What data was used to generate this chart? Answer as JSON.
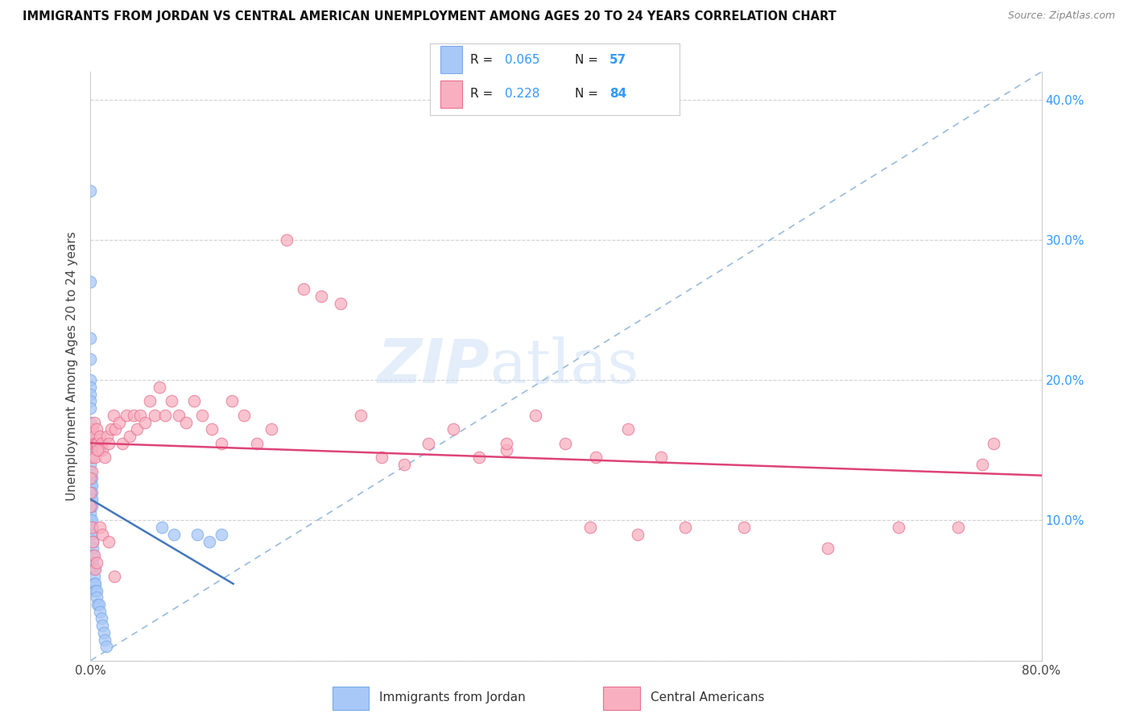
{
  "title": "IMMIGRANTS FROM JORDAN VS CENTRAL AMERICAN UNEMPLOYMENT AMONG AGES 20 TO 24 YEARS CORRELATION CHART",
  "source": "Source: ZipAtlas.com",
  "ylabel": "Unemployment Among Ages 20 to 24 years",
  "xlim": [
    0.0,
    0.8
  ],
  "ylim": [
    0.0,
    0.42
  ],
  "yticks_right": [
    0.1,
    0.2,
    0.3,
    0.4
  ],
  "yticklabels_right": [
    "10.0%",
    "20.0%",
    "30.0%",
    "40.0%"
  ],
  "jordan_color": "#a8c8f8",
  "jordan_edge_color": "#7aaae8",
  "central_color": "#f8b0c0",
  "central_edge_color": "#e87090",
  "trendline_jordan_color": "#4477bb",
  "trendline_central_color": "#dd4477",
  "dashed_line_color": "#99bbdd",
  "watermark_zip": "ZIP",
  "watermark_atlas": "atlas",
  "legend_R_jordan": "0.065",
  "legend_N_jordan": "57",
  "legend_R_central": "0.228",
  "legend_N_central": "84",
  "legend_label_jordan": "Immigrants from Jordan",
  "legend_label_central": "Central Americans",
  "jordan_x": [
    0.0,
    0.0,
    0.0,
    0.0,
    0.0,
    0.0,
    0.0,
    0.0,
    0.0,
    0.0,
    0.0,
    0.0,
    0.0,
    0.0,
    0.0,
    0.0,
    0.0,
    0.0,
    0.0,
    0.0,
    0.0,
    0.0,
    0.0,
    0.0,
    0.0,
    0.001,
    0.001,
    0.001,
    0.001,
    0.001,
    0.001,
    0.001,
    0.001,
    0.002,
    0.002,
    0.002,
    0.002,
    0.003,
    0.003,
    0.003,
    0.004,
    0.004,
    0.005,
    0.005,
    0.006,
    0.007,
    0.008,
    0.009,
    0.01,
    0.011,
    0.012,
    0.013,
    0.06,
    0.07,
    0.09,
    0.1,
    0.11
  ],
  "jordan_y": [
    0.335,
    0.27,
    0.23,
    0.215,
    0.2,
    0.195,
    0.19,
    0.185,
    0.18,
    0.17,
    0.16,
    0.155,
    0.15,
    0.145,
    0.14,
    0.135,
    0.13,
    0.125,
    0.12,
    0.115,
    0.11,
    0.105,
    0.1,
    0.095,
    0.09,
    0.13,
    0.125,
    0.12,
    0.115,
    0.11,
    0.1,
    0.095,
    0.09,
    0.085,
    0.08,
    0.075,
    0.07,
    0.065,
    0.06,
    0.055,
    0.055,
    0.05,
    0.05,
    0.045,
    0.04,
    0.04,
    0.035,
    0.03,
    0.025,
    0.02,
    0.015,
    0.01,
    0.095,
    0.09,
    0.09,
    0.085,
    0.09
  ],
  "central_x": [
    0.001,
    0.001,
    0.001,
    0.002,
    0.002,
    0.003,
    0.003,
    0.004,
    0.004,
    0.005,
    0.005,
    0.006,
    0.007,
    0.008,
    0.009,
    0.01,
    0.012,
    0.014,
    0.015,
    0.017,
    0.019,
    0.021,
    0.024,
    0.027,
    0.03,
    0.033,
    0.036,
    0.039,
    0.042,
    0.046,
    0.05,
    0.054,
    0.058,
    0.063,
    0.068,
    0.074,
    0.08,
    0.087,
    0.094,
    0.102,
    0.11,
    0.119,
    0.129,
    0.14,
    0.152,
    0.165,
    0.179,
    0.194,
    0.21,
    0.227,
    0.245,
    0.264,
    0.284,
    0.305,
    0.327,
    0.35,
    0.374,
    0.399,
    0.425,
    0.452,
    0.48,
    0.0,
    0.0,
    0.0,
    0.001,
    0.002,
    0.003,
    0.004,
    0.005,
    0.006,
    0.008,
    0.01,
    0.015,
    0.02,
    0.35,
    0.42,
    0.46,
    0.5,
    0.55,
    0.62,
    0.68,
    0.73,
    0.75,
    0.76
  ],
  "central_y": [
    0.155,
    0.145,
    0.135,
    0.165,
    0.155,
    0.17,
    0.16,
    0.155,
    0.145,
    0.165,
    0.155,
    0.155,
    0.15,
    0.16,
    0.155,
    0.15,
    0.145,
    0.16,
    0.155,
    0.165,
    0.175,
    0.165,
    0.17,
    0.155,
    0.175,
    0.16,
    0.175,
    0.165,
    0.175,
    0.17,
    0.185,
    0.175,
    0.195,
    0.175,
    0.185,
    0.175,
    0.17,
    0.185,
    0.175,
    0.165,
    0.155,
    0.185,
    0.175,
    0.155,
    0.165,
    0.3,
    0.265,
    0.26,
    0.255,
    0.175,
    0.145,
    0.14,
    0.155,
    0.165,
    0.145,
    0.15,
    0.175,
    0.155,
    0.145,
    0.165,
    0.145,
    0.13,
    0.12,
    0.11,
    0.095,
    0.085,
    0.075,
    0.065,
    0.07,
    0.15,
    0.095,
    0.09,
    0.085,
    0.06,
    0.155,
    0.095,
    0.09,
    0.095,
    0.095,
    0.08,
    0.095,
    0.095,
    0.14,
    0.155
  ]
}
